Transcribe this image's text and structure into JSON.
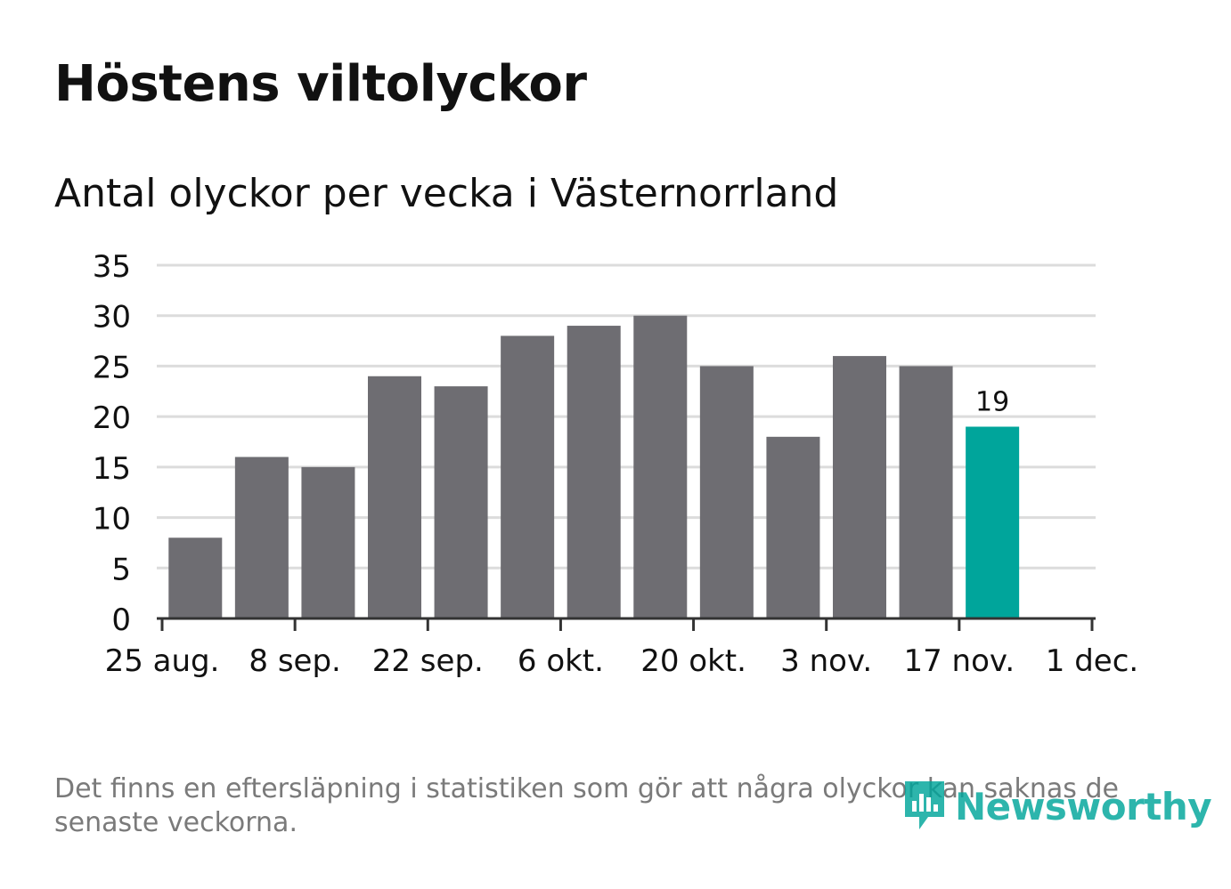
{
  "title": "Höstens viltolyckor",
  "subtitle": "Antal olyckor per vecka i Västernorrland",
  "footnote": "Det finns en eftersläpning i statistiken som gör att några olyckor kan saknas de senaste veckorna.",
  "brand": {
    "name": "Newsworthy",
    "icon": "newsworthy-logo-icon"
  },
  "colors": {
    "bar": "#6e6d72",
    "highlight": "#00a59b",
    "grid": "#dcdcdc",
    "axis": "#333333",
    "text": "#111111"
  },
  "chart_data": {
    "type": "bar",
    "title": "Höstens viltolyckor",
    "subtitle": "Antal olyckor per vecka i Västernorrland",
    "xlabel": "",
    "ylabel": "",
    "ylim": [
      0,
      35
    ],
    "yticks": [
      0,
      5,
      10,
      15,
      20,
      25,
      30,
      35
    ],
    "xticks": [
      "25 aug.",
      "8 sep.",
      "22 sep.",
      "6 okt.",
      "20 okt.",
      "3 nov.",
      "17 nov.",
      "1 dec."
    ],
    "x_range_weeks": [
      0,
      14
    ],
    "grid": true,
    "series": [
      {
        "name": "Antal olyckor",
        "week_index": [
          0.5,
          1.5,
          2.5,
          3.5,
          4.5,
          5.5,
          6.5,
          7.5,
          8.5,
          9.5,
          10.5,
          11.5,
          12.5
        ],
        "values": [
          8,
          16,
          15,
          24,
          23,
          28,
          29,
          30,
          25,
          18,
          26,
          25,
          19
        ]
      }
    ],
    "highlight_index": 12,
    "data_labels": [
      {
        "index": 12,
        "text": "19"
      }
    ]
  }
}
